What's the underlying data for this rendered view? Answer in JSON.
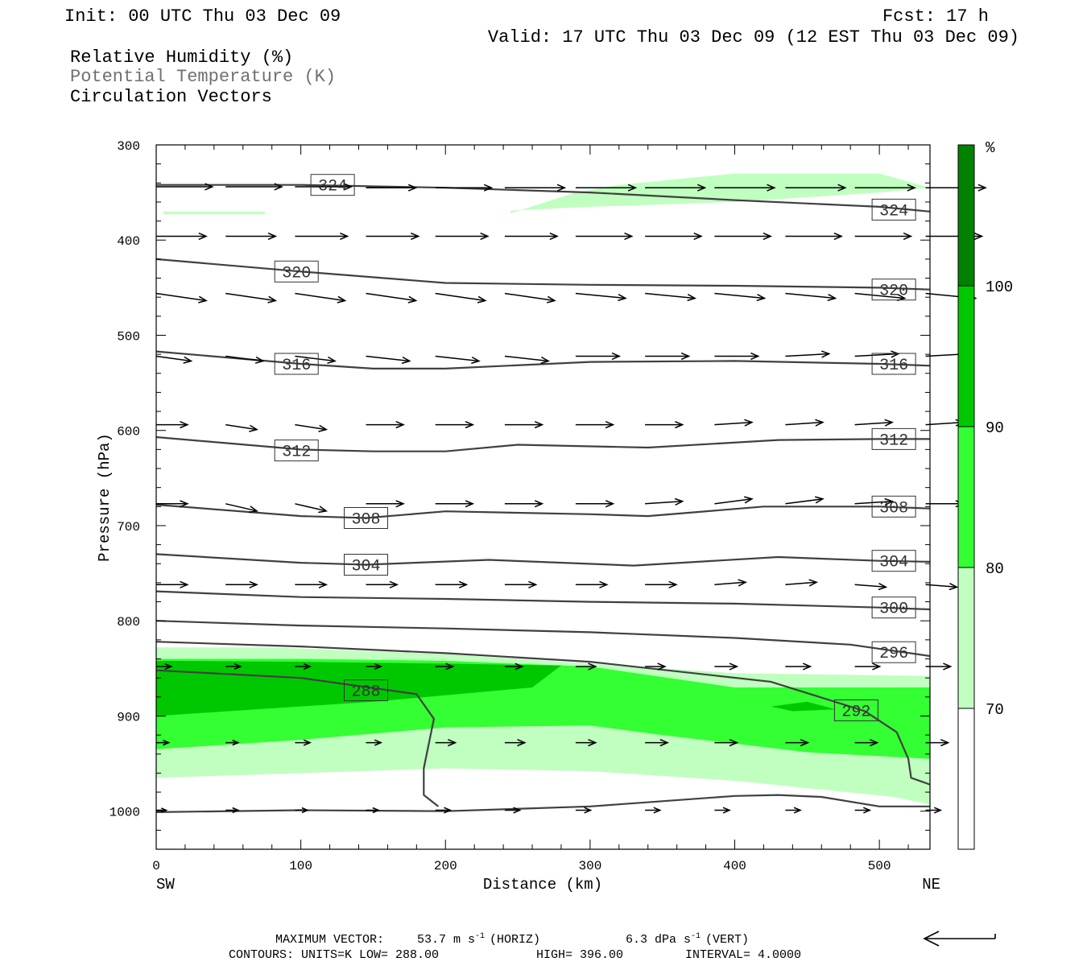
{
  "header": {
    "init": "Init: 00 UTC Thu 03 Dec 09",
    "fcst": "Fcst:   17 h",
    "valid": "Valid: 17 UTC Thu 03 Dec 09 (12 EST Thu 03 Dec 09)",
    "fields": [
      "Relative Humidity (%)",
      "Potential Temperature (K)",
      "Circulation Vectors"
    ]
  },
  "colors": {
    "rh_70": "#c0ffc0",
    "rh_80": "#33ff33",
    "rh_90": "#00c800",
    "rh_100": "#008200",
    "theta_contour": "#404040"
  },
  "chart_data": {
    "type": "cross-section",
    "xlabel": "Distance (km)",
    "ylabel": "Pressure (hPa)",
    "xlim": [
      0,
      535
    ],
    "ylim": [
      1040,
      300
    ],
    "x_ticks": [
      "0",
      "100",
      "200",
      "300",
      "400",
      "500"
    ],
    "x_tick_values": [
      0,
      100,
      200,
      300,
      400,
      500
    ],
    "y_ticks": [
      "300",
      "400",
      "500",
      "600",
      "700",
      "800",
      "900",
      "1000"
    ],
    "y_tick_values": [
      300,
      400,
      500,
      600,
      700,
      800,
      900,
      1000
    ],
    "endpoints": {
      "left": "SW",
      "right": "NE"
    },
    "colorbar": {
      "unit": "%",
      "levels": [
        "70",
        "80",
        "90",
        "100"
      ],
      "level_values": [
        70,
        80,
        90,
        100
      ]
    },
    "rh_regions": [
      {
        "level": 70,
        "points": [
          [
            0,
            828
          ],
          [
            80,
            828
          ],
          [
            200,
            835
          ],
          [
            300,
            845
          ],
          [
            400,
            855
          ],
          [
            535,
            858
          ],
          [
            535,
            993
          ],
          [
            510,
            985
          ],
          [
            400,
            968
          ],
          [
            300,
            958
          ],
          [
            200,
            955
          ],
          [
            100,
            960
          ],
          [
            0,
            965
          ]
        ]
      },
      {
        "level": 80,
        "points": [
          [
            0,
            840
          ],
          [
            100,
            840
          ],
          [
            200,
            842
          ],
          [
            300,
            848
          ],
          [
            400,
            870
          ],
          [
            535,
            870
          ],
          [
            535,
            945
          ],
          [
            450,
            938
          ],
          [
            350,
            920
          ],
          [
            300,
            910
          ],
          [
            200,
            912
          ],
          [
            100,
            925
          ],
          [
            0,
            935
          ]
        ]
      },
      {
        "level": 90,
        "points": [
          [
            0,
            842
          ],
          [
            100,
            843
          ],
          [
            200,
            845
          ],
          [
            280,
            847
          ],
          [
            260,
            870
          ],
          [
            150,
            885
          ],
          [
            50,
            895
          ],
          [
            0,
            900
          ]
        ]
      },
      {
        "level": 90,
        "points": [
          [
            425,
            890
          ],
          [
            450,
            885
          ],
          [
            470,
            893
          ],
          [
            440,
            895
          ]
        ]
      },
      {
        "level": 70,
        "points": [
          [
            245,
            372
          ],
          [
            290,
            350
          ],
          [
            320,
            342
          ],
          [
            400,
            330
          ],
          [
            500,
            330
          ],
          [
            535,
            345
          ],
          [
            500,
            350
          ],
          [
            400,
            360
          ],
          [
            300,
            365
          ],
          [
            245,
            369
          ]
        ]
      },
      {
        "level": 70,
        "points": [
          [
            5,
            370
          ],
          [
            75,
            370
          ],
          [
            75,
            373
          ],
          [
            5,
            373
          ]
        ]
      }
    ],
    "theta_contours": [
      {
        "value": 324,
        "label": "324",
        "label_positions": [
          [
            122,
            342
          ],
          [
            510,
            368
          ]
        ],
        "points": [
          [
            0,
            342
          ],
          [
            100,
            342
          ],
          [
            200,
            345
          ],
          [
            300,
            350
          ],
          [
            400,
            358
          ],
          [
            500,
            365
          ],
          [
            535,
            370
          ]
        ]
      },
      {
        "value": 320,
        "label": "320",
        "label_positions": [
          [
            97,
            433
          ],
          [
            510,
            452
          ]
        ],
        "points": [
          [
            0,
            420
          ],
          [
            100,
            433
          ],
          [
            200,
            445
          ],
          [
            300,
            447
          ],
          [
            400,
            448
          ],
          [
            500,
            450
          ],
          [
            535,
            452
          ]
        ]
      },
      {
        "value": 316,
        "label": "316",
        "label_positions": [
          [
            97,
            530
          ],
          [
            510,
            530
          ]
        ],
        "points": [
          [
            0,
            517
          ],
          [
            100,
            530
          ],
          [
            150,
            535
          ],
          [
            200,
            535
          ],
          [
            300,
            528
          ],
          [
            400,
            527
          ],
          [
            500,
            530
          ],
          [
            535,
            532
          ]
        ]
      },
      {
        "value": 312,
        "label": "312",
        "label_positions": [
          [
            97,
            621
          ],
          [
            510,
            609
          ]
        ],
        "points": [
          [
            0,
            607
          ],
          [
            100,
            620
          ],
          [
            150,
            622
          ],
          [
            200,
            622
          ],
          [
            250,
            615
          ],
          [
            340,
            618
          ],
          [
            430,
            610
          ],
          [
            500,
            609
          ],
          [
            535,
            609
          ]
        ]
      },
      {
        "value": 308,
        "label": "308",
        "label_positions": [
          [
            145,
            692
          ],
          [
            510,
            680
          ]
        ],
        "points": [
          [
            0,
            678
          ],
          [
            100,
            690
          ],
          [
            145,
            692
          ],
          [
            200,
            685
          ],
          [
            300,
            688
          ],
          [
            340,
            690
          ],
          [
            420,
            680
          ],
          [
            500,
            680
          ],
          [
            535,
            682
          ]
        ]
      },
      {
        "value": 304,
        "label": "304",
        "label_positions": [
          [
            145,
            741
          ],
          [
            510,
            737
          ]
        ],
        "points": [
          [
            0,
            730
          ],
          [
            100,
            739
          ],
          [
            145,
            741
          ],
          [
            230,
            736
          ],
          [
            330,
            742
          ],
          [
            430,
            733
          ],
          [
            500,
            737
          ],
          [
            535,
            738
          ]
        ]
      },
      {
        "value": 300,
        "label": "300",
        "label_positions": [
          [
            510,
            786
          ]
        ],
        "points": [
          [
            0,
            769
          ],
          [
            100,
            775
          ],
          [
            200,
            777
          ],
          [
            300,
            780
          ],
          [
            400,
            782
          ],
          [
            500,
            786
          ],
          [
            535,
            788
          ]
        ]
      },
      {
        "value": 296,
        "label": "296",
        "label_positions": [
          [
            510,
            833
          ]
        ],
        "points": [
          [
            0,
            800
          ],
          [
            100,
            805
          ],
          [
            200,
            808
          ],
          [
            300,
            812
          ],
          [
            400,
            818
          ],
          [
            480,
            825
          ],
          [
            535,
            837
          ]
        ]
      },
      {
        "value": 292,
        "label": "292",
        "label_positions": [
          [
            484,
            894
          ]
        ],
        "points": [
          [
            0,
            822
          ],
          [
            100,
            827
          ],
          [
            200,
            834
          ],
          [
            300,
            843
          ],
          [
            425,
            864
          ],
          [
            490,
            895
          ],
          [
            512,
            917
          ],
          [
            520,
            945
          ],
          [
            522,
            965
          ],
          [
            535,
            972
          ]
        ]
      },
      {
        "value": 288,
        "label": "288",
        "label_positions": [
          [
            145,
            873
          ]
        ],
        "points": [
          [
            0,
            852
          ],
          [
            100,
            860
          ],
          [
            180,
            877
          ],
          [
            192,
            903
          ],
          [
            185,
            955
          ],
          [
            185,
            983
          ],
          [
            195,
            995
          ]
        ]
      },
      {
        "value": 0,
        "label": "",
        "label_positions": [],
        "points": [
          [
            0,
            1001
          ],
          [
            100,
            999
          ],
          [
            200,
            1000
          ],
          [
            300,
            995
          ],
          [
            400,
            984
          ],
          [
            430,
            983
          ],
          [
            460,
            985
          ],
          [
            500,
            995
          ],
          [
            535,
            995
          ]
        ]
      }
    ],
    "vector_rows": [
      {
        "p": 344,
        "x": [
          0,
          48,
          96
        ],
        "u": [
          45,
          45,
          45
        ],
        "w": [
          0,
          0,
          0
        ]
      },
      {
        "p": 345,
        "x": [
          145,
          193,
          241,
          290,
          338,
          386,
          435,
          483,
          532
        ],
        "u": [
          40,
          45,
          48,
          48,
          48,
          48,
          48,
          48,
          48
        ],
        "w": [
          0,
          0,
          0,
          0,
          0,
          0,
          0,
          0,
          0
        ]
      },
      {
        "p": 396,
        "x": [
          0,
          48,
          96,
          145,
          193,
          241,
          290,
          338,
          386,
          435,
          483,
          532
        ],
        "u": [
          40,
          40,
          42,
          42,
          42,
          42,
          45,
          45,
          45,
          45,
          45,
          45
        ],
        "w": [
          0,
          0,
          0,
          0,
          0,
          0,
          0,
          0,
          0,
          0,
          0,
          0
        ]
      },
      {
        "p": 456,
        "x": [
          0,
          48,
          96,
          145,
          193,
          241,
          290,
          338,
          386,
          435,
          483,
          532
        ],
        "u": [
          40,
          40,
          40,
          40,
          40,
          40,
          40,
          40,
          40,
          40,
          40,
          40
        ],
        "w": [
          3,
          3,
          3,
          3,
          3,
          3,
          2,
          2,
          2,
          2,
          2,
          2
        ]
      },
      {
        "p": 522,
        "x": [
          0,
          48,
          96,
          145,
          193,
          241,
          290,
          338,
          386,
          435,
          483,
          532
        ],
        "u": [
          28,
          30,
          32,
          35,
          35,
          35,
          35,
          35,
          35,
          35,
          35,
          35
        ],
        "w": [
          2,
          2,
          2,
          2,
          2,
          2,
          0,
          0,
          0,
          -1,
          -1,
          -1
        ]
      },
      {
        "p": 594,
        "x": [
          0,
          48,
          96,
          145,
          193,
          241,
          290,
          338,
          386,
          435,
          483,
          532
        ],
        "u": [
          25,
          25,
          25,
          30,
          30,
          30,
          30,
          30,
          30,
          30,
          30,
          30
        ],
        "w": [
          0,
          2,
          2,
          0,
          0,
          0,
          0,
          0,
          -1,
          -1,
          -1,
          -1
        ]
      },
      {
        "p": 677,
        "x": [
          0,
          48,
          96,
          145,
          193,
          241,
          290,
          338,
          386,
          435,
          483,
          532
        ],
        "u": [
          25,
          25,
          25,
          30,
          30,
          30,
          30,
          30,
          30,
          30,
          30,
          30
        ],
        "w": [
          0,
          3,
          3,
          0,
          0,
          0,
          0,
          -1,
          -2,
          -2,
          -1,
          0
        ]
      },
      {
        "p": 762,
        "x": [
          0,
          48,
          96,
          145,
          193,
          241,
          290,
          338,
          386,
          435,
          483,
          532
        ],
        "u": [
          25,
          25,
          25,
          25,
          25,
          25,
          25,
          25,
          25,
          25,
          25,
          25
        ],
        "w": [
          0,
          0,
          0,
          0,
          0,
          0,
          0,
          0,
          -1,
          -1,
          1,
          1
        ]
      },
      {
        "p": 848,
        "x": [
          0,
          48,
          96,
          145,
          193,
          241,
          290,
          338,
          386,
          435,
          483,
          532
        ],
        "u": [
          12,
          12,
          12,
          12,
          14,
          14,
          16,
          16,
          18,
          20,
          20,
          20
        ],
        "w": [
          0,
          0,
          0,
          0,
          0,
          0,
          0,
          0,
          0,
          0,
          0,
          0
        ]
      },
      {
        "p": 928,
        "x": [
          0,
          48,
          96,
          145,
          193,
          241,
          290,
          338,
          386,
          435,
          483,
          532
        ],
        "u": [
          10,
          10,
          12,
          12,
          16,
          16,
          16,
          18,
          18,
          18,
          18,
          18
        ],
        "w": [
          0,
          0,
          0,
          0,
          0,
          0,
          0,
          0,
          0,
          0,
          0,
          0
        ]
      },
      {
        "p": 999,
        "x": [
          0,
          48,
          96,
          145,
          193,
          241,
          290,
          338,
          386,
          435,
          483,
          532
        ],
        "u": [
          8,
          10,
          10,
          10,
          12,
          12,
          12,
          12,
          12,
          12,
          12,
          12
        ],
        "w": [
          0,
          0,
          0,
          0,
          0,
          0,
          0,
          0,
          0,
          0,
          0,
          0
        ]
      }
    ]
  },
  "footer": {
    "max_vector_label": "MAXIMUM VECTOR:",
    "max_horiz": "53.7 m s",
    "max_horiz_sup": "-1",
    "max_horiz_tag": "(HORIZ)",
    "max_vert": "6.3 dPa s",
    "max_vert_sup": "-1",
    "max_vert_tag": "(VERT)",
    "contours": "CONTOURS:  UNITS=K  LOW=   288.00",
    "high": "HIGH=   396.00",
    "interval": "INTERVAL=    4.0000"
  }
}
